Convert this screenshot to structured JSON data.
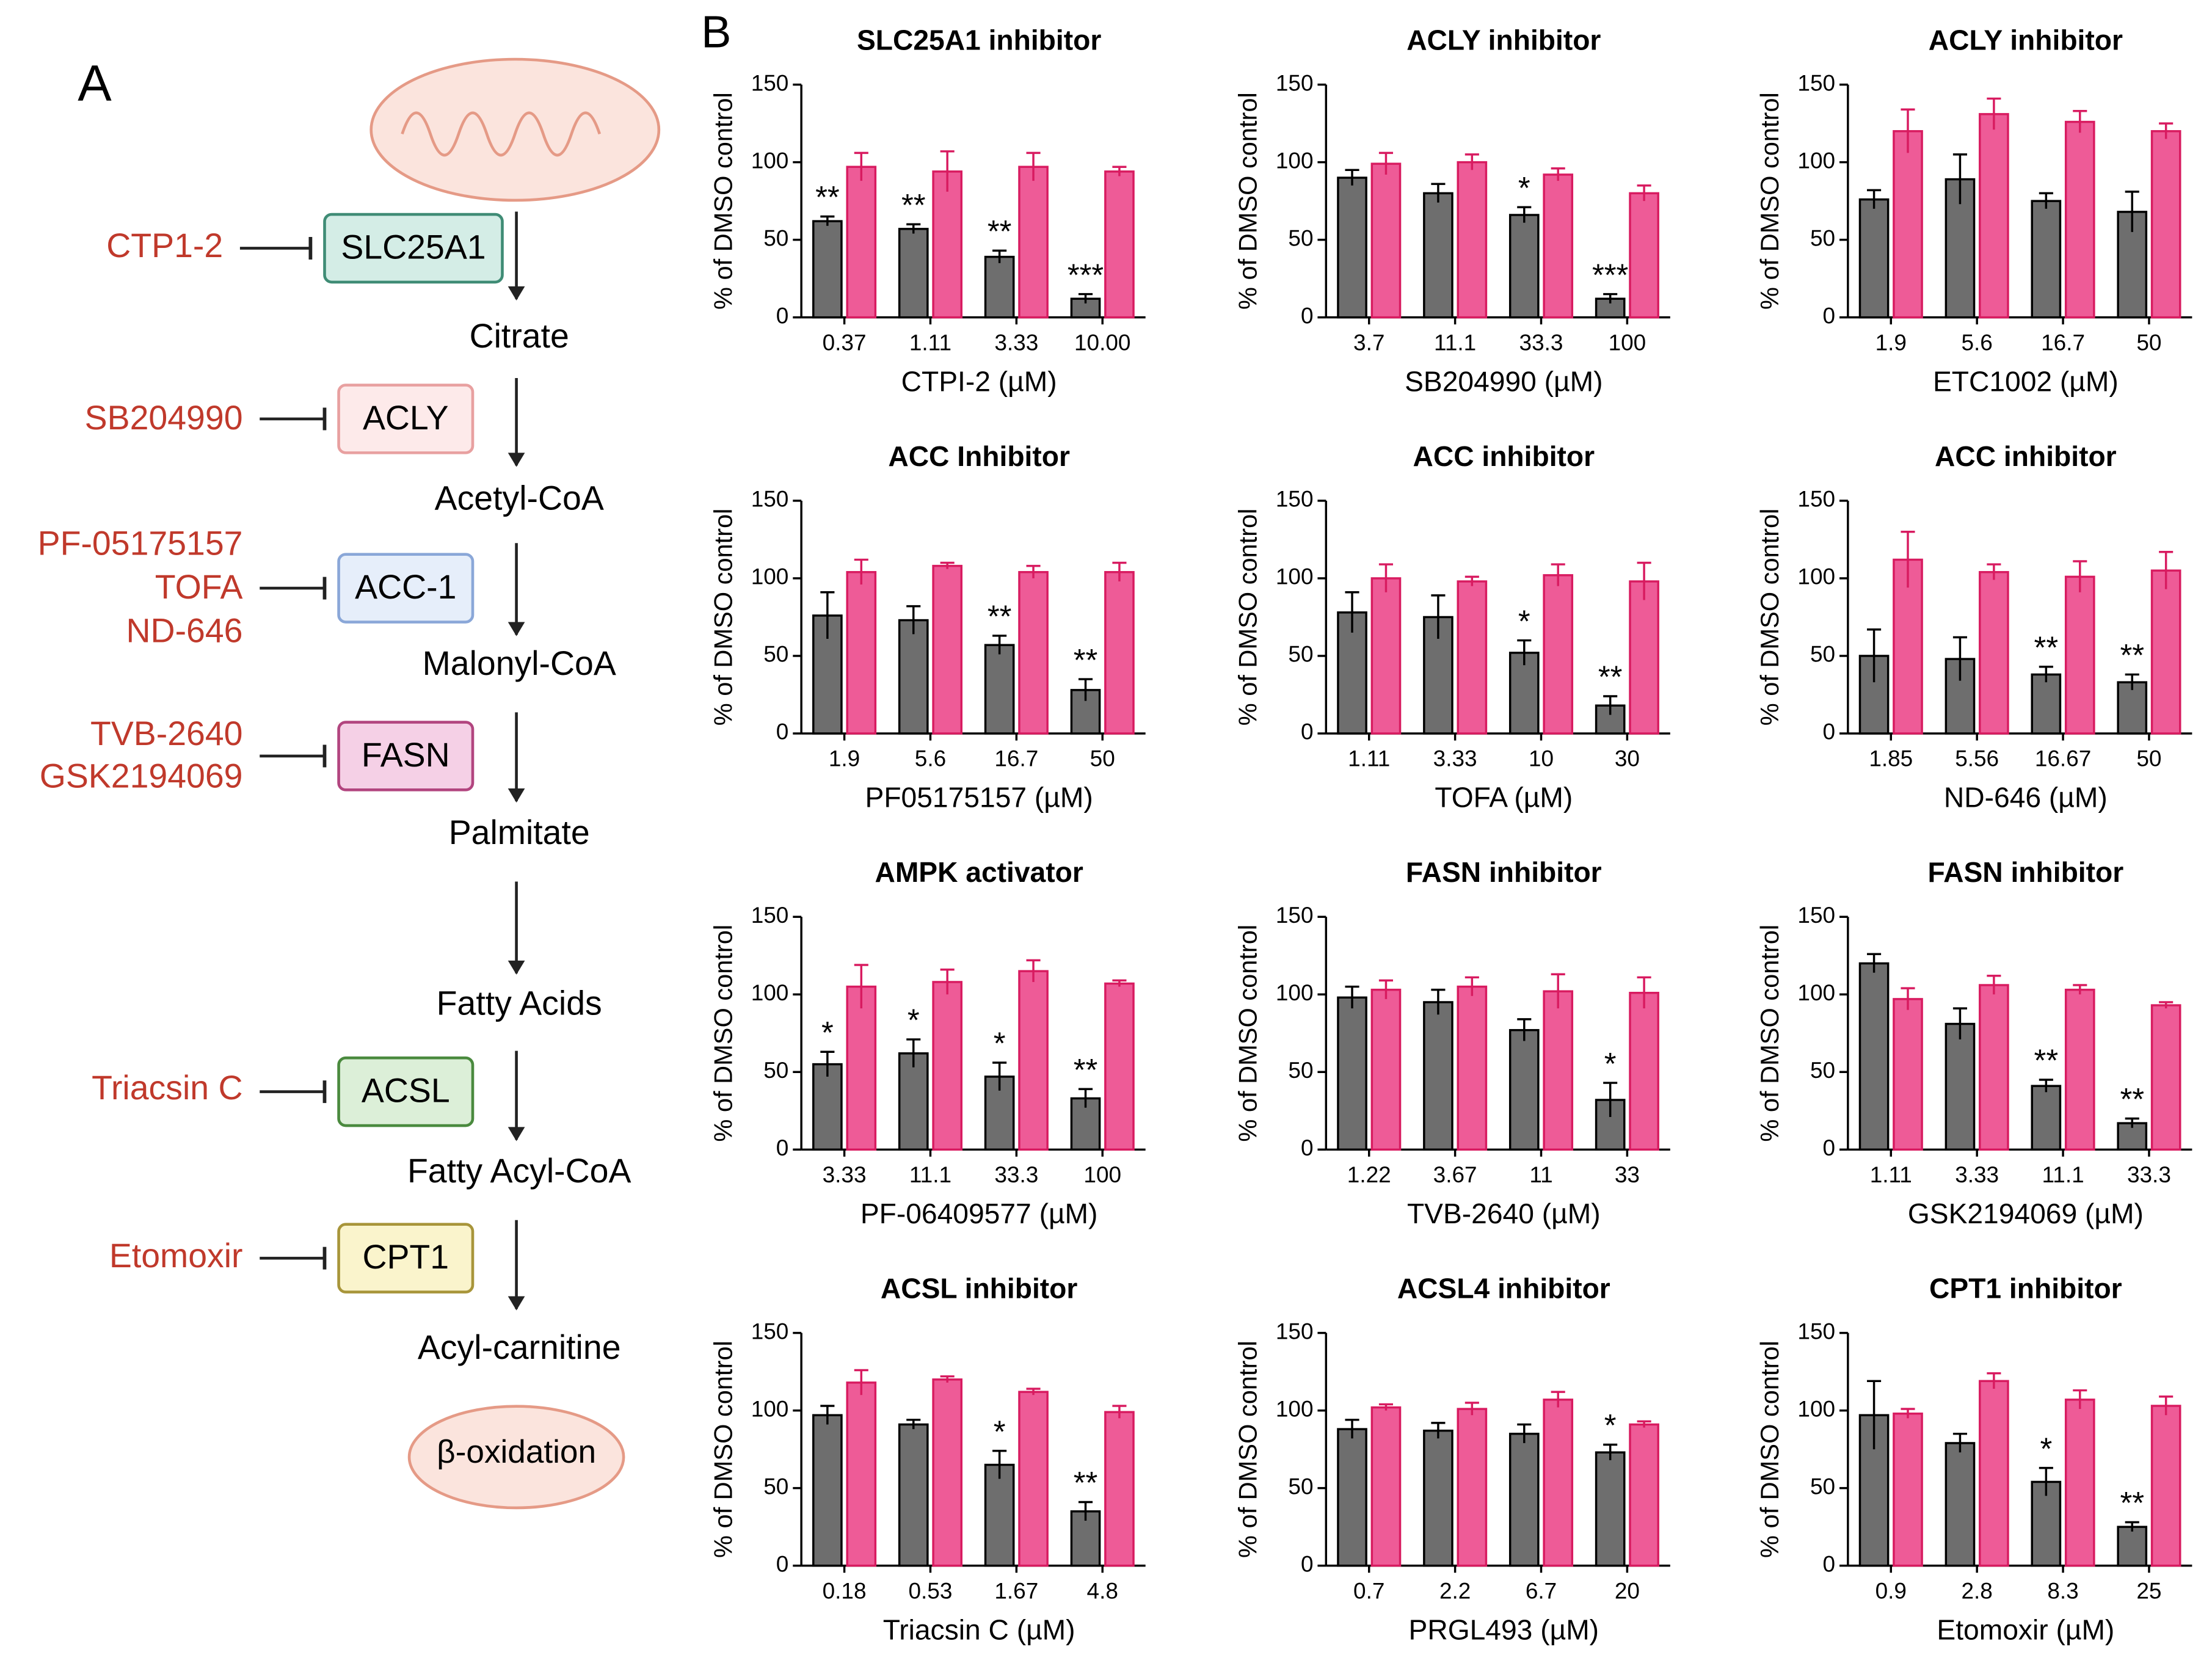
{
  "panel_labels": [
    "A",
    "B"
  ],
  "diagram": {
    "metabolites": [
      "Citrate",
      "Acetyl-CoA",
      "Malonyl-CoA",
      "Palmitate",
      "Fatty Acids",
      "Fatty Acyl-CoA",
      "Acyl-carnitine"
    ],
    "enzymes": [
      "SLC25A1",
      "ACLY",
      "ACC-1",
      "FASN",
      "ACSL",
      "CPT1"
    ],
    "inhibitors": [
      [
        "CTP1-2"
      ],
      [
        "SB204990"
      ],
      [
        "PF-05175157",
        "TOFA",
        "ND-646"
      ],
      [
        "TVB-2640",
        "GSK2194069"
      ],
      [
        "Triacsin C"
      ],
      [
        "Etomoxir"
      ]
    ],
    "end_label": "β-oxidation"
  },
  "chart_data": [
    {
      "type": "bar",
      "title": "SLC25A1 inhibitor",
      "xlabel": "CTPI-2 (µM)",
      "ylabel": "% of DMSO control",
      "categories": [
        "0.37",
        "1.11",
        "3.33",
        "10.00"
      ],
      "ylim": [
        0,
        150
      ],
      "yticks": [
        0,
        50,
        100,
        150
      ],
      "series": [
        {
          "color": "#6e6e6e",
          "edge": "#000000",
          "values": [
            62,
            57,
            39,
            12
          ],
          "errors": [
            3,
            3,
            4,
            3
          ]
        },
        {
          "color": "#ee5b97",
          "edge": "#d81b60",
          "values": [
            97,
            94,
            97,
            94
          ],
          "errors": [
            9,
            13,
            9,
            3
          ]
        }
      ],
      "annotations": [
        "**",
        "**",
        "**",
        "***"
      ]
    },
    {
      "type": "bar",
      "title": "ACLY inhibitor",
      "xlabel": "SB204990 (µM)",
      "ylabel": "% of DMSO control",
      "categories": [
        "3.7",
        "11.1",
        "33.3",
        "100"
      ],
      "ylim": [
        0,
        150
      ],
      "yticks": [
        0,
        50,
        100,
        150
      ],
      "series": [
        {
          "color": "#6e6e6e",
          "edge": "#000000",
          "values": [
            90,
            80,
            66,
            12
          ],
          "errors": [
            5,
            6,
            5,
            3
          ]
        },
        {
          "color": "#ee5b97",
          "edge": "#d81b60",
          "values": [
            99,
            100,
            92,
            80
          ],
          "errors": [
            7,
            5,
            4,
            5
          ]
        }
      ],
      "annotations": [
        null,
        null,
        "*",
        "***"
      ]
    },
    {
      "type": "bar",
      "title": "ACLY inhibitor",
      "xlabel": "ETC1002 (µM)",
      "ylabel": "% of DMSO control",
      "categories": [
        "1.9",
        "5.6",
        "16.7",
        "50"
      ],
      "ylim": [
        0,
        150
      ],
      "yticks": [
        0,
        50,
        100,
        150
      ],
      "series": [
        {
          "color": "#6e6e6e",
          "edge": "#000000",
          "values": [
            76,
            89,
            75,
            68
          ],
          "errors": [
            6,
            16,
            5,
            13
          ]
        },
        {
          "color": "#ee5b97",
          "edge": "#d81b60",
          "values": [
            120,
            131,
            126,
            120
          ],
          "errors": [
            14,
            10,
            7,
            5
          ]
        }
      ],
      "annotations": [
        null,
        null,
        null,
        null
      ]
    },
    {
      "type": "bar",
      "title": "ACC Inhibitor",
      "xlabel": "PF05175157 (µM)",
      "ylabel": "% of DMSO control",
      "categories": [
        "1.9",
        "5.6",
        "16.7",
        "50"
      ],
      "ylim": [
        0,
        150
      ],
      "yticks": [
        0,
        50,
        100,
        150
      ],
      "series": [
        {
          "color": "#6e6e6e",
          "edge": "#000000",
          "values": [
            76,
            73,
            57,
            28
          ],
          "errors": [
            15,
            9,
            6,
            7
          ]
        },
        {
          "color": "#ee5b97",
          "edge": "#d81b60",
          "values": [
            104,
            108,
            104,
            104
          ],
          "errors": [
            8,
            2,
            4,
            6
          ]
        }
      ],
      "annotations": [
        null,
        null,
        "**",
        "**"
      ]
    },
    {
      "type": "bar",
      "title": "ACC inhibitor",
      "xlabel": "TOFA (µM)",
      "ylabel": "% of DMSO control",
      "categories": [
        "1.11",
        "3.33",
        "10",
        "30"
      ],
      "ylim": [
        0,
        150
      ],
      "yticks": [
        0,
        50,
        100,
        150
      ],
      "series": [
        {
          "color": "#6e6e6e",
          "edge": "#000000",
          "values": [
            78,
            75,
            52,
            18
          ],
          "errors": [
            13,
            14,
            8,
            6
          ]
        },
        {
          "color": "#ee5b97",
          "edge": "#d81b60",
          "values": [
            100,
            98,
            102,
            98
          ],
          "errors": [
            9,
            3,
            7,
            12
          ]
        }
      ],
      "annotations": [
        null,
        null,
        "*",
        "**"
      ]
    },
    {
      "type": "bar",
      "title": "ACC inhibitor",
      "xlabel": "ND-646 (µM)",
      "ylabel": "% of DMSO control",
      "categories": [
        "1.85",
        "5.56",
        "16.67",
        "50"
      ],
      "ylim": [
        0,
        150
      ],
      "yticks": [
        0,
        50,
        100,
        150
      ],
      "series": [
        {
          "color": "#6e6e6e",
          "edge": "#000000",
          "values": [
            50,
            48,
            38,
            33
          ],
          "errors": [
            17,
            14,
            5,
            5
          ]
        },
        {
          "color": "#ee5b97",
          "edge": "#d81b60",
          "values": [
            112,
            104,
            101,
            105
          ],
          "errors": [
            18,
            5,
            10,
            12
          ]
        }
      ],
      "annotations": [
        null,
        null,
        "**",
        "**"
      ]
    },
    {
      "type": "bar",
      "title": "AMPK activator",
      "xlabel": "PF-06409577 (µM)",
      "ylabel": "% of DMSO control",
      "categories": [
        "3.33",
        "11.1",
        "33.3",
        "100"
      ],
      "ylim": [
        0,
        150
      ],
      "yticks": [
        0,
        50,
        100,
        150
      ],
      "series": [
        {
          "color": "#6e6e6e",
          "edge": "#000000",
          "values": [
            55,
            62,
            47,
            33
          ],
          "errors": [
            8,
            9,
            9,
            6
          ]
        },
        {
          "color": "#ee5b97",
          "edge": "#d81b60",
          "values": [
            105,
            108,
            115,
            107
          ],
          "errors": [
            14,
            8,
            7,
            2
          ]
        }
      ],
      "annotations": [
        "*",
        "*",
        "*",
        "**"
      ]
    },
    {
      "type": "bar",
      "title": "FASN inhibitor",
      "xlabel": "TVB-2640 (µM)",
      "ylabel": "% of DMSO control",
      "categories": [
        "1.22",
        "3.67",
        "11",
        "33"
      ],
      "ylim": [
        0,
        150
      ],
      "yticks": [
        0,
        50,
        100,
        150
      ],
      "series": [
        {
          "color": "#6e6e6e",
          "edge": "#000000",
          "values": [
            98,
            95,
            77,
            32
          ],
          "errors": [
            7,
            8,
            7,
            11
          ]
        },
        {
          "color": "#ee5b97",
          "edge": "#d81b60",
          "values": [
            103,
            105,
            102,
            101
          ],
          "errors": [
            6,
            6,
            11,
            10
          ]
        }
      ],
      "annotations": [
        null,
        null,
        null,
        "*"
      ]
    },
    {
      "type": "bar",
      "title": "FASN inhibitor",
      "xlabel": "GSK2194069 (µM)",
      "ylabel": "% of DMSO control",
      "categories": [
        "1.11",
        "3.33",
        "11.1",
        "33.3"
      ],
      "ylim": [
        0,
        150
      ],
      "yticks": [
        0,
        50,
        100,
        150
      ],
      "series": [
        {
          "color": "#6e6e6e",
          "edge": "#000000",
          "values": [
            120,
            81,
            41,
            17
          ],
          "errors": [
            6,
            10,
            4,
            3
          ]
        },
        {
          "color": "#ee5b97",
          "edge": "#d81b60",
          "values": [
            97,
            106,
            103,
            93
          ],
          "errors": [
            7,
            6,
            3,
            2
          ]
        }
      ],
      "annotations": [
        null,
        null,
        "**",
        "**"
      ]
    },
    {
      "type": "bar",
      "title": "ACSL inhibitor",
      "xlabel": "Triacsin C (µM)",
      "ylabel": "% of DMSO control",
      "categories": [
        "0.18",
        "0.53",
        "1.67",
        "4.8"
      ],
      "ylim": [
        0,
        150
      ],
      "yticks": [
        0,
        50,
        100,
        150
      ],
      "series": [
        {
          "color": "#6e6e6e",
          "edge": "#000000",
          "values": [
            97,
            91,
            65,
            35
          ],
          "errors": [
            6,
            3,
            9,
            6
          ]
        },
        {
          "color": "#ee5b97",
          "edge": "#d81b60",
          "values": [
            118,
            120,
            112,
            99
          ],
          "errors": [
            8,
            2,
            2,
            4
          ]
        }
      ],
      "annotations": [
        null,
        null,
        "*",
        "**"
      ]
    },
    {
      "type": "bar",
      "title": "ACSL4 inhibitor",
      "xlabel": "PRGL493 (µM)",
      "ylabel": "% of DMSO control",
      "categories": [
        "0.7",
        "2.2",
        "6.7",
        "20"
      ],
      "ylim": [
        0,
        150
      ],
      "yticks": [
        0,
        50,
        100,
        150
      ],
      "series": [
        {
          "color": "#6e6e6e",
          "edge": "#000000",
          "values": [
            88,
            87,
            85,
            73
          ],
          "errors": [
            6,
            5,
            6,
            5
          ]
        },
        {
          "color": "#ee5b97",
          "edge": "#d81b60",
          "values": [
            102,
            101,
            107,
            91
          ],
          "errors": [
            2,
            4,
            5,
            2
          ]
        }
      ],
      "annotations": [
        null,
        null,
        null,
        "*"
      ]
    },
    {
      "type": "bar",
      "title": "CPT1 inhibitor",
      "xlabel": "Etomoxir (µM)",
      "ylabel": "% of DMSO control",
      "categories": [
        "0.9",
        "2.8",
        "8.3",
        "25"
      ],
      "ylim": [
        0,
        150
      ],
      "yticks": [
        0,
        50,
        100,
        150
      ],
      "series": [
        {
          "color": "#6e6e6e",
          "edge": "#000000",
          "values": [
            97,
            79,
            54,
            25
          ],
          "errors": [
            22,
            6,
            9,
            3
          ]
        },
        {
          "color": "#ee5b97",
          "edge": "#d81b60",
          "values": [
            98,
            119,
            107,
            103
          ],
          "errors": [
            3,
            5,
            6,
            6
          ]
        }
      ],
      "annotations": [
        null,
        null,
        "*",
        "**"
      ]
    }
  ]
}
